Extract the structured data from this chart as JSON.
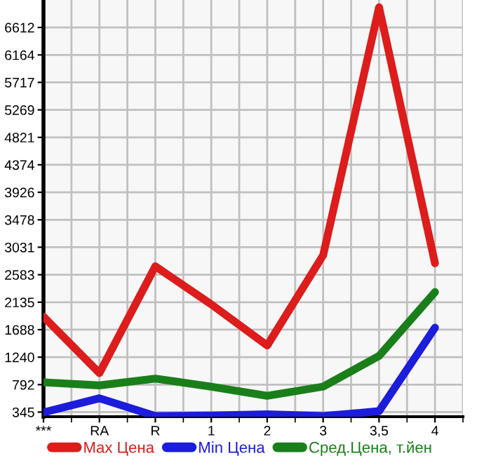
{
  "chart_data": {
    "type": "line",
    "categories": [
      "***",
      "RA",
      "R",
      "1",
      "2",
      "3",
      "3,5",
      "4"
    ],
    "series": [
      {
        "name": "Max Цена",
        "color": "#dd1c1c",
        "values": [
          1900,
          980,
          2720,
          2100,
          1430,
          2900,
          6940,
          2770
        ]
      },
      {
        "name": "Min Цена",
        "color": "#1c1cdd",
        "values": [
          340,
          570,
          280,
          290,
          310,
          280,
          360,
          1720
        ]
      },
      {
        "name": "Сред.Цена, т.йен",
        "color": "#1a7f1a",
        "values": [
          830,
          780,
          890,
          760,
          610,
          760,
          1260,
          2300
        ]
      }
    ],
    "ylim": [
      270,
      7059
    ],
    "yticks": [
      345,
      792,
      1240,
      1688,
      2135,
      2583,
      3031,
      3478,
      3926,
      4374,
      4821,
      5269,
      5717,
      6164,
      6612
    ],
    "grid": true,
    "legend": "bottom",
    "marker": "none",
    "line_style": "solid"
  }
}
